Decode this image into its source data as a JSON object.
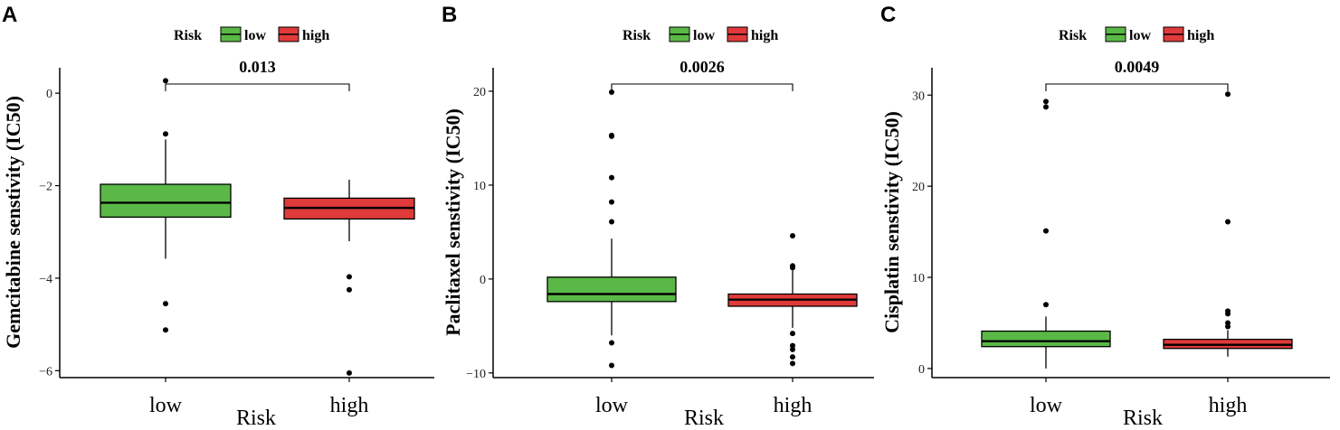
{
  "chart_data": [
    {
      "panel": "A",
      "type": "box",
      "title": "",
      "xlabel": "Risk",
      "ylabel": "Gemcitabine senstivity (IC50)",
      "ylim": [
        -6.15,
        0.55
      ],
      "yticks": [
        0,
        -2,
        -4,
        -6
      ],
      "ytick_labels": [
        "0",
        "−2",
        "−4",
        "−6"
      ],
      "p_value": "0.013",
      "categories": [
        "low",
        "high"
      ],
      "boxes": [
        {
          "name": "low",
          "q1": -2.68,
          "median": -2.37,
          "q3": -1.97,
          "whisker_low": -3.58,
          "whisker_high": -1.0,
          "outliers": [
            0.27,
            -0.88,
            -4.55,
            -5.12
          ]
        },
        {
          "name": "high",
          "q1": -2.72,
          "median": -2.48,
          "q3": -2.27,
          "whisker_low": -3.2,
          "whisker_high": -1.87,
          "outliers": [
            -3.97,
            -4.25,
            -6.05
          ]
        }
      ]
    },
    {
      "panel": "B",
      "type": "box",
      "title": "",
      "xlabel": "Risk",
      "ylabel": "Paclitaxel senstivity (IC50)",
      "ylim": [
        -10.5,
        22.5
      ],
      "yticks": [
        20,
        10,
        0,
        -10
      ],
      "ytick_labels": [
        "20",
        "10",
        "0",
        "−10"
      ],
      "p_value": "0.0026",
      "categories": [
        "low",
        "high"
      ],
      "boxes": [
        {
          "name": "low",
          "q1": -2.4,
          "median": -1.6,
          "q3": 0.2,
          "whisker_low": -6.0,
          "whisker_high": 4.3,
          "outliers": [
            19.9,
            15.2,
            15.3,
            10.8,
            8.2,
            6.1,
            -6.8,
            -9.2
          ]
        },
        {
          "name": "high",
          "q1": -2.9,
          "median": -2.2,
          "q3": -1.6,
          "whisker_low": -5.2,
          "whisker_high": 0.9,
          "outliers": [
            4.6,
            1.4,
            1.2,
            -5.8,
            -7.1,
            -7.5,
            -8.3,
            -9.0
          ]
        }
      ]
    },
    {
      "panel": "C",
      "type": "box",
      "title": "",
      "xlabel": "Risk",
      "ylabel": "Cisplatin senstivity (IC50)",
      "ylim": [
        -1.0,
        33.0
      ],
      "yticks": [
        30,
        20,
        10,
        0
      ],
      "ytick_labels": [
        "30",
        "20",
        "10",
        "0"
      ],
      "p_value": "0.0049",
      "categories": [
        "low",
        "high"
      ],
      "boxes": [
        {
          "name": "low",
          "q1": 2.4,
          "median": 3.0,
          "q3": 4.1,
          "whisker_low": 0.0,
          "whisker_high": 5.7,
          "outliers": [
            29.3,
            28.7,
            15.1,
            7.0
          ]
        },
        {
          "name": "high",
          "q1": 2.2,
          "median": 2.6,
          "q3": 3.2,
          "whisker_low": 1.3,
          "whisker_high": 4.2,
          "outliers": [
            30.1,
            16.1,
            6.3,
            6.0,
            5.0,
            4.6
          ]
        }
      ]
    }
  ],
  "legend": {
    "title": "Risk",
    "items": [
      {
        "label": "low",
        "color": "#5ab946"
      },
      {
        "label": "high",
        "color": "#e03a3a"
      }
    ]
  },
  "colors": {
    "low": "#5ab946",
    "high": "#e03a3a",
    "outline": "#000000"
  }
}
